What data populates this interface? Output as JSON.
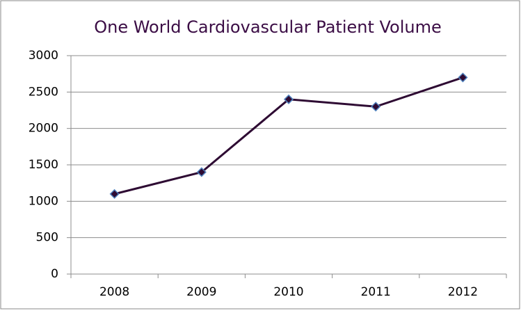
{
  "chart_data": {
    "type": "line",
    "title": "One World Cardiovascular Patient Volume",
    "categories": [
      "2008",
      "2009",
      "2010",
      "2011",
      "2012"
    ],
    "values": [
      1100,
      1400,
      2400,
      2300,
      2700
    ],
    "color": "#2e0b33",
    "marker_color": "#4f81bd",
    "ylim": [
      0,
      3000
    ],
    "yticks": [
      0,
      500,
      1000,
      1500,
      2000,
      2500,
      3000
    ],
    "grid": true
  }
}
